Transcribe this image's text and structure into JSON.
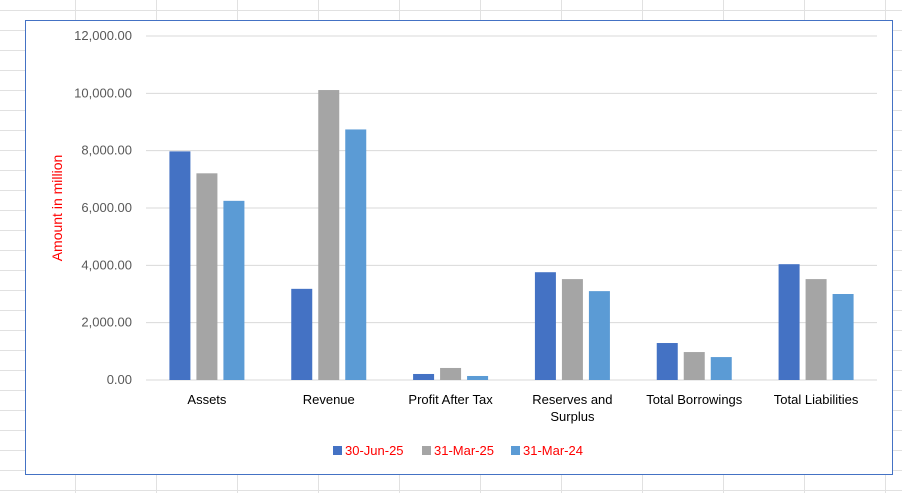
{
  "chart_data": {
    "type": "bar",
    "title": "",
    "xlabel": "",
    "ylabel": "Amount in million",
    "ylim": [
      0,
      12000
    ],
    "yticks": [
      "0.00",
      "2,000.00",
      "4,000.00",
      "6,000.00",
      "8,000.00",
      "10,000.00",
      "12,000.00"
    ],
    "ytick_values": [
      0,
      2000,
      4000,
      6000,
      8000,
      10000,
      12000
    ],
    "grid": true,
    "legend_position": "bottom",
    "categories": [
      [
        "Assets"
      ],
      [
        "Revenue"
      ],
      [
        "Profit After Tax"
      ],
      [
        "Reserves and",
        "Surplus"
      ],
      [
        "Total Borrowings"
      ],
      [
        "Total Liabilities"
      ]
    ],
    "series": [
      {
        "name": "30-Jun-25",
        "color": "#4472c4",
        "values": [
          7975,
          3180,
          210,
          3760,
          1290,
          4040
        ]
      },
      {
        "name": "31-Mar-25",
        "color": "#a5a5a5",
        "values": [
          7210,
          10115,
          420,
          3520,
          975,
          3520
        ]
      },
      {
        "name": "31-Mar-24",
        "color": "#5b9bd5",
        "values": [
          6250,
          8740,
          140,
          3100,
          800,
          3000
        ]
      }
    ],
    "ylabel_color": "#ff0000",
    "legend_text_color": "#ff0000"
  }
}
